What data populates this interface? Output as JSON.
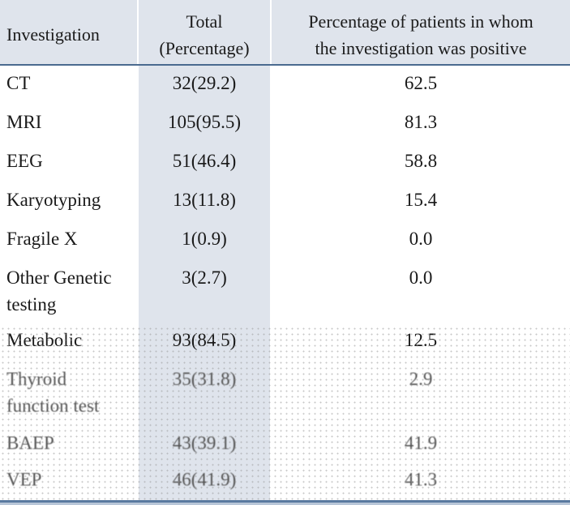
{
  "table": {
    "headers": {
      "investigation": "Investigation",
      "total_line1": "Total",
      "total_line2": "(Percentage)",
      "positive_line1": "Percentage of patients in whom",
      "positive_line2": "the investigation was positive"
    },
    "rows": [
      {
        "investigation": "CT",
        "investigation_line2": "",
        "total": "32(29.2)",
        "positive": "62.5"
      },
      {
        "investigation": "MRI",
        "investigation_line2": "",
        "total": "105(95.5)",
        "positive": "81.3"
      },
      {
        "investigation": "EEG",
        "investigation_line2": "",
        "total": "51(46.4)",
        "positive": "58.8"
      },
      {
        "investigation": "Karyotyping",
        "investigation_line2": "",
        "total": "13(11.8)",
        "positive": "15.4"
      },
      {
        "investigation": "Fragile X",
        "investigation_line2": "",
        "total": "1(0.9)",
        "positive": "0.0"
      },
      {
        "investigation": "Other Genetic",
        "investigation_line2": "testing",
        "total": "3(2.7)",
        "positive": "0.0"
      },
      {
        "investigation": "Metabolic",
        "investigation_line2": "",
        "total": "93(84.5)",
        "positive": "12.5"
      },
      {
        "investigation": "Thyroid",
        "investigation_line2": "function test",
        "total": "35(31.8)",
        "positive": "2.9"
      },
      {
        "investigation": "BAEP",
        "investigation_line2": "",
        "total": "43(39.1)",
        "positive": "41.9"
      },
      {
        "investigation": "VEP",
        "investigation_line2": "",
        "total": "46(41.9)",
        "positive": "41.3"
      }
    ]
  },
  "colors": {
    "header_fill": "#dfe4ec",
    "rule": "#4a6a8f"
  }
}
